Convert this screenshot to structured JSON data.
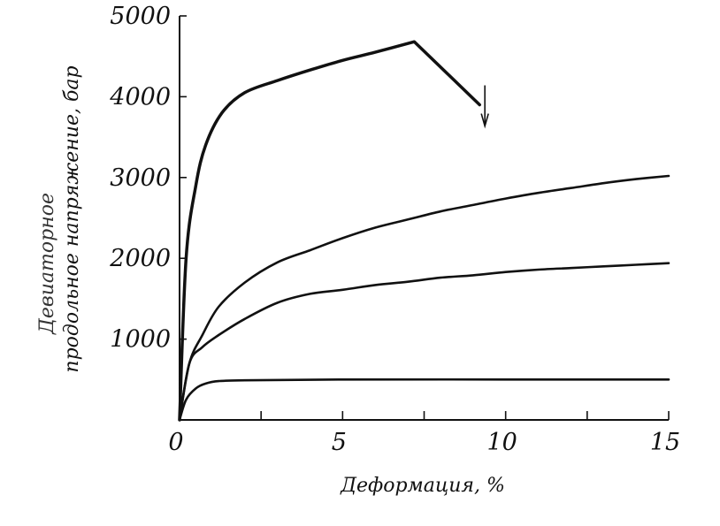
{
  "chart_data": {
    "type": "line",
    "title": "",
    "xlabel": "Деформация, %",
    "ylabel_line1": "Девиаторное",
    "ylabel_line2": "продольное напряжение, бар",
    "xlim": [
      0,
      15
    ],
    "ylim": [
      0,
      5000
    ],
    "x_ticks": [
      0,
      5,
      10,
      15
    ],
    "x_minor_ticks": [
      2.5,
      7.5,
      12.5
    ],
    "y_ticks": [
      1000,
      2000,
      3000,
      4000,
      5000
    ],
    "grid": false,
    "legend": "none",
    "series": [
      {
        "points": [
          [
            0,
            0
          ],
          [
            0.2,
            2000
          ],
          [
            0.5,
            2900
          ],
          [
            0.8,
            3400
          ],
          [
            1.3,
            3800
          ],
          [
            2,
            4050
          ],
          [
            3,
            4200
          ],
          [
            4,
            4330
          ],
          [
            5,
            4450
          ],
          [
            6,
            4550
          ],
          [
            7.2,
            4680
          ],
          [
            9.2,
            3900
          ]
        ],
        "end_arrow": true,
        "stroke": 3.5
      },
      {
        "points": [
          [
            0,
            0
          ],
          [
            0.3,
            700
          ],
          [
            0.7,
            1050
          ],
          [
            1.2,
            1400
          ],
          [
            2,
            1700
          ],
          [
            3,
            1950
          ],
          [
            4,
            2100
          ],
          [
            5,
            2250
          ],
          [
            6,
            2380
          ],
          [
            7,
            2480
          ],
          [
            8,
            2580
          ],
          [
            9,
            2660
          ],
          [
            10,
            2740
          ],
          [
            11,
            2810
          ],
          [
            12,
            2870
          ],
          [
            13,
            2930
          ],
          [
            14,
            2980
          ],
          [
            15,
            3020
          ]
        ],
        "stroke": 2.6
      },
      {
        "points": [
          [
            0,
            0
          ],
          [
            0.3,
            700
          ],
          [
            0.7,
            900
          ],
          [
            1.2,
            1050
          ],
          [
            2,
            1250
          ],
          [
            3,
            1450
          ],
          [
            4,
            1560
          ],
          [
            5,
            1610
          ],
          [
            6,
            1670
          ],
          [
            7,
            1710
          ],
          [
            8,
            1760
          ],
          [
            9,
            1790
          ],
          [
            10,
            1830
          ],
          [
            11,
            1860
          ],
          [
            12,
            1880
          ],
          [
            13,
            1900
          ],
          [
            14,
            1920
          ],
          [
            15,
            1940
          ]
        ],
        "stroke": 2.6
      },
      {
        "points": [
          [
            0,
            0
          ],
          [
            0.2,
            250
          ],
          [
            0.5,
            390
          ],
          [
            0.8,
            450
          ],
          [
            1.2,
            480
          ],
          [
            2,
            490
          ],
          [
            5,
            500
          ],
          [
            10,
            500
          ],
          [
            15,
            500
          ]
        ],
        "stroke": 2.6
      }
    ]
  }
}
